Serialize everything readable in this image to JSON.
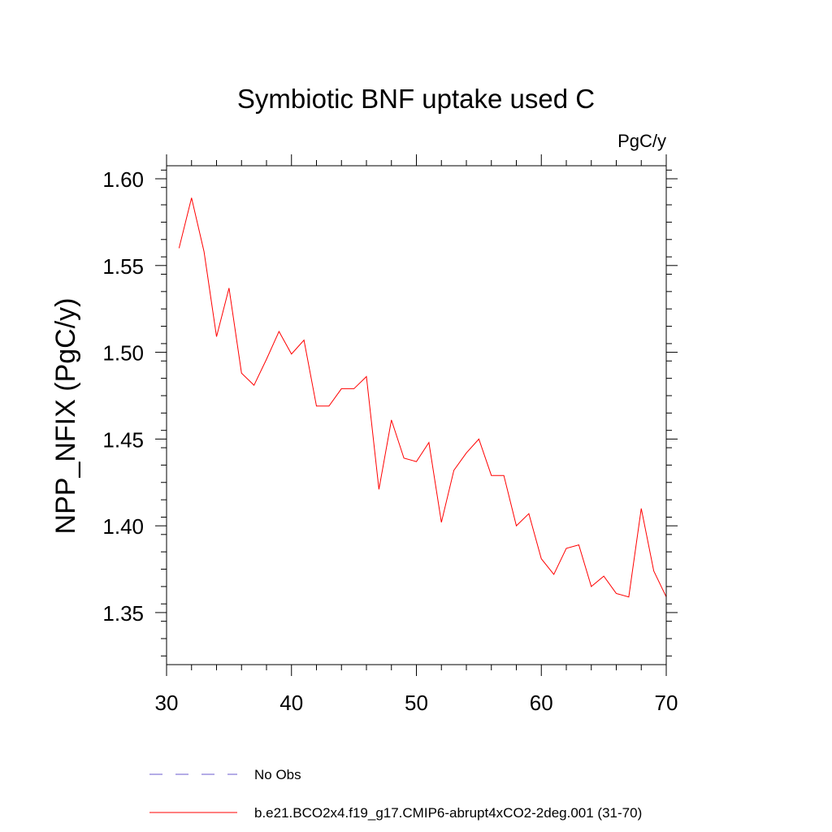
{
  "chart_data": {
    "type": "line",
    "title": "Symbiotic BNF uptake used C",
    "units": "PgC/y",
    "ylabel": "NPP_NFIX  (PgC/y)",
    "xlabel": "",
    "xlim": [
      30,
      70
    ],
    "ylim": [
      1.32,
      1.6075
    ],
    "xticks": [
      30,
      40,
      50,
      60,
      70
    ],
    "yticks": [
      1.35,
      1.4,
      1.45,
      1.5,
      1.55,
      1.6
    ],
    "ytick_labels": [
      "1.35",
      "1.40",
      "1.45",
      "1.50",
      "1.55",
      "1.60"
    ],
    "grid": false,
    "legend_position": "bottom",
    "series": [
      {
        "name": "b.e21.BCO2x4.f19_g17.CMIP6-abrupt4xCO2-2deg.001 (31-70)",
        "color": "#ff0000",
        "x": [
          31,
          32,
          33,
          34,
          35,
          36,
          37,
          38,
          39,
          40,
          41,
          42,
          43,
          44,
          45,
          46,
          47,
          48,
          49,
          50,
          51,
          52,
          53,
          54,
          55,
          56,
          57,
          58,
          59,
          60,
          61,
          62,
          63,
          64,
          65,
          66,
          67,
          68,
          69,
          70
        ],
        "y": [
          1.56,
          1.589,
          1.558,
          1.509,
          1.537,
          1.488,
          1.481,
          1.496,
          1.512,
          1.499,
          1.507,
          1.469,
          1.469,
          1.479,
          1.479,
          1.486,
          1.421,
          1.461,
          1.439,
          1.437,
          1.448,
          1.402,
          1.432,
          1.442,
          1.45,
          1.429,
          1.429,
          1.4,
          1.407,
          1.381,
          1.372,
          1.387,
          1.389,
          1.365,
          1.371,
          1.361,
          1.359,
          1.41,
          1.374,
          1.359
        ]
      }
    ],
    "legend": [
      {
        "label": "No Obs",
        "style": "dashed",
        "color": "#6a5acd"
      },
      {
        "label": "b.e21.BCO2x4.f19_g17.CMIP6-abrupt4xCO2-2deg.001 (31-70)",
        "style": "solid",
        "color": "#ff0000"
      }
    ]
  }
}
